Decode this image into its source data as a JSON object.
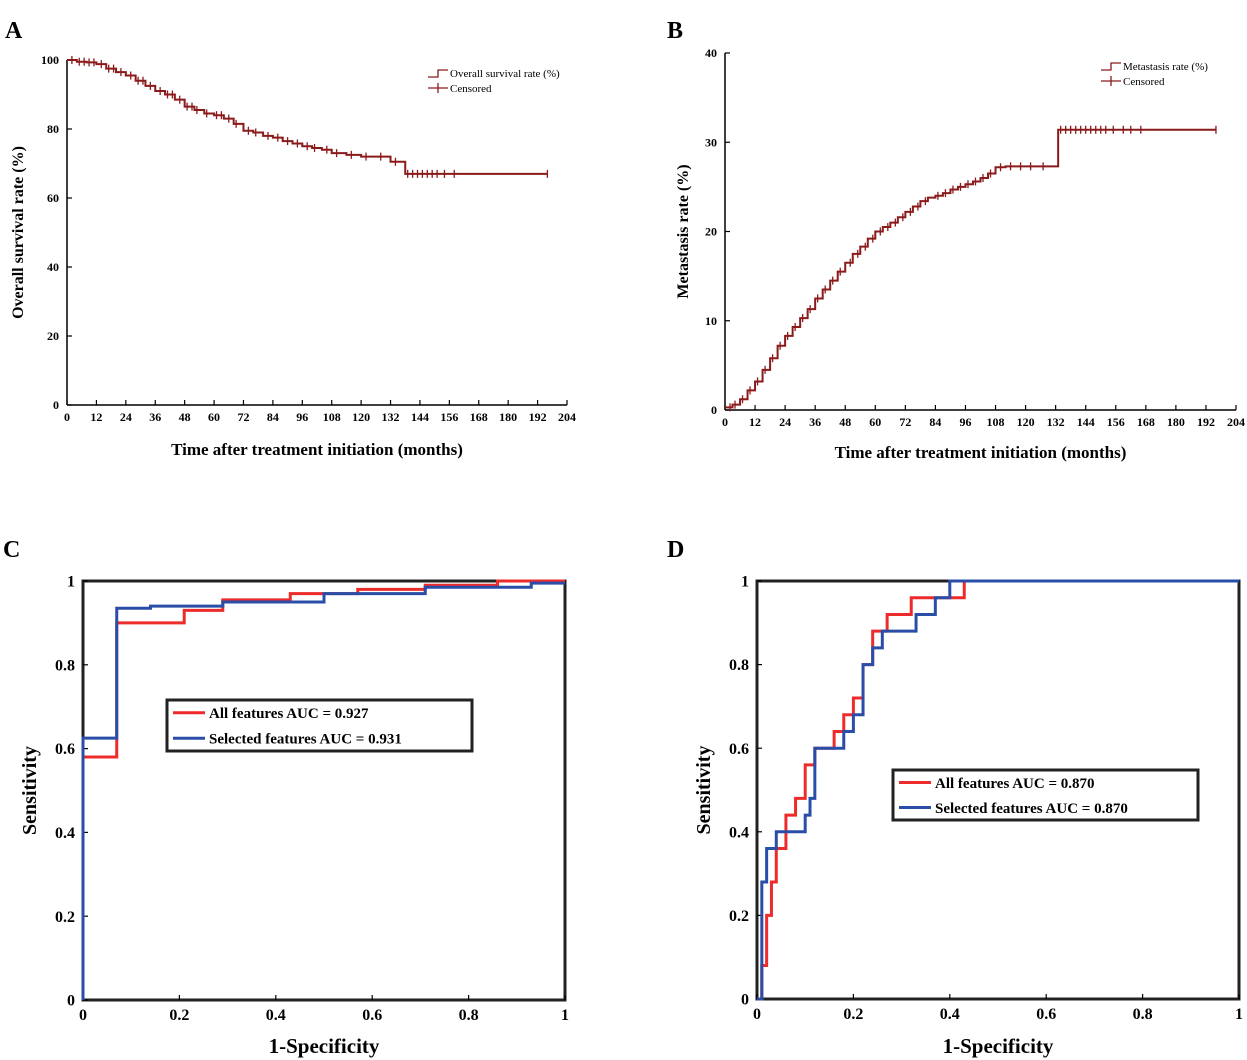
{
  "chart_data": [
    {
      "panel": "A",
      "type": "line",
      "step": true,
      "xlabel": "Time after treatment initiation (months)",
      "ylabel": "Overall survival rate (%)",
      "xlim": [
        0,
        204
      ],
      "ylim": [
        0,
        100
      ],
      "xticks": [
        0,
        12,
        24,
        36,
        48,
        60,
        72,
        84,
        96,
        108,
        120,
        132,
        144,
        156,
        168,
        180,
        192,
        204
      ],
      "yticks": [
        0,
        20,
        40,
        60,
        80,
        100
      ],
      "color": "#8b1a1a",
      "legend": [
        "Overall survival rate (%)",
        "Censored"
      ],
      "legend_position": "top-right",
      "series": [
        {
          "name": "Overall survival rate (%)",
          "x": [
            0,
            4,
            8,
            12,
            16,
            20,
            24,
            28,
            32,
            36,
            40,
            44,
            48,
            52,
            56,
            60,
            64,
            68,
            72,
            76,
            80,
            84,
            88,
            92,
            96,
            100,
            104,
            108,
            114,
            120,
            126,
            132,
            137,
            138,
            144,
            150,
            160,
            170,
            180,
            192,
            196
          ],
          "y": [
            100,
            99.5,
            99.3,
            98.8,
            97.5,
            96.5,
            95.5,
            94,
            92.5,
            91,
            90,
            88.5,
            86.5,
            85.5,
            84.5,
            84,
            83,
            81.5,
            79.5,
            79,
            78,
            77.5,
            76.5,
            75.8,
            75,
            74.5,
            74,
            73,
            72.5,
            72,
            72,
            70.5,
            70.5,
            67,
            67,
            67,
            67,
            67,
            67,
            67,
            67
          ]
        }
      ],
      "censored_x": [
        2,
        5,
        7,
        9,
        11,
        14,
        17,
        19,
        22,
        26,
        29,
        31,
        34,
        38,
        41,
        43,
        46,
        49,
        51,
        53,
        57,
        61,
        63,
        66,
        69,
        74,
        77,
        82,
        86,
        90,
        94,
        98,
        101,
        106,
        110,
        116,
        122,
        128,
        134,
        139,
        141,
        143,
        145,
        147,
        149,
        151,
        154,
        158,
        196
      ]
    },
    {
      "panel": "B",
      "type": "line",
      "step": true,
      "xlabel": "Time after treatment initiation (months)",
      "ylabel": "Metastasis rate (%)",
      "xlim": [
        0,
        204
      ],
      "ylim": [
        0,
        40
      ],
      "xticks": [
        0,
        12,
        24,
        36,
        48,
        60,
        72,
        84,
        96,
        108,
        120,
        132,
        144,
        156,
        168,
        180,
        192,
        204
      ],
      "yticks": [
        0,
        10,
        20,
        30,
        40
      ],
      "color": "#8b1a1a",
      "legend": [
        "Metastasis rate (%)",
        "Censored"
      ],
      "legend_position": "top-right",
      "series": [
        {
          "name": "Metastasis rate (%)",
          "x": [
            0,
            3,
            6,
            9,
            12,
            15,
            18,
            21,
            24,
            27,
            30,
            33,
            36,
            39,
            42,
            45,
            48,
            51,
            54,
            57,
            60,
            63,
            66,
            69,
            72,
            75,
            78,
            81,
            84,
            87,
            90,
            93,
            96,
            99,
            102,
            105,
            108,
            112,
            116,
            120,
            124,
            128,
            132,
            133,
            140,
            150,
            160,
            180,
            196
          ],
          "y": [
            0.3,
            0.6,
            1.2,
            2.2,
            3.2,
            4.5,
            5.8,
            7.2,
            8.3,
            9.3,
            10.3,
            11.3,
            12.5,
            13.5,
            14.5,
            15.5,
            16.5,
            17.5,
            18.3,
            19.2,
            20,
            20.5,
            21,
            21.6,
            22.2,
            22.8,
            23.4,
            23.8,
            24,
            24.3,
            24.7,
            25,
            25.3,
            25.6,
            26,
            26.5,
            27.2,
            27.3,
            27.3,
            27.3,
            27.3,
            27.3,
            27.3,
            31.4,
            31.4,
            31.4,
            31.4,
            31.4,
            31.4
          ]
        }
      ],
      "censored_x": [
        2,
        4,
        7,
        10,
        13,
        16,
        19,
        22,
        25,
        28,
        31,
        34,
        37,
        40,
        43,
        46,
        50,
        53,
        56,
        59,
        62,
        65,
        68,
        71,
        74,
        77,
        80,
        85,
        88,
        91,
        94,
        97,
        100,
        103,
        106,
        110,
        114,
        118,
        122,
        127,
        134,
        136,
        138,
        140,
        142,
        144,
        146,
        148,
        150,
        152,
        155,
        159,
        162,
        166,
        196
      ]
    },
    {
      "panel": "C",
      "type": "line",
      "step": true,
      "xlabel": "1-Specificity",
      "ylabel": "Sensitivity",
      "xlim": [
        0,
        1
      ],
      "ylim": [
        0,
        1
      ],
      "xticks": [
        0,
        0.2,
        0.4,
        0.6,
        0.8,
        1
      ],
      "yticks": [
        0,
        0.2,
        0.4,
        0.6,
        0.8,
        1
      ],
      "legend_position": "center",
      "series": [
        {
          "name": "All features AUC = 0.927",
          "color": "#ee2b2b",
          "x": [
            0,
            0,
            0,
            0.07,
            0.07,
            0.21,
            0.21,
            0.29,
            0.29,
            0.43,
            0.43,
            0.57,
            0.57,
            0.71,
            0.71,
            0.86,
            0.86,
            1
          ],
          "y": [
            0,
            0.08,
            0.58,
            0.58,
            0.9,
            0.9,
            0.93,
            0.93,
            0.955,
            0.955,
            0.97,
            0.97,
            0.98,
            0.98,
            0.99,
            0.99,
            1,
            1
          ]
        },
        {
          "name": "Selected features AUC = 0.931",
          "color": "#2a4ea8",
          "x": [
            0,
            0,
            0,
            0.07,
            0.07,
            0.14,
            0.14,
            0.29,
            0.29,
            0.5,
            0.5,
            0.71,
            0.71,
            0.93,
            0.93,
            1
          ],
          "y": [
            0,
            0.2,
            0.625,
            0.625,
            0.935,
            0.935,
            0.94,
            0.94,
            0.95,
            0.95,
            0.97,
            0.97,
            0.985,
            0.985,
            0.995,
            0.995
          ]
        }
      ]
    },
    {
      "panel": "D",
      "type": "line",
      "step": true,
      "xlabel": "1-Specificity",
      "ylabel": "Sensitivity",
      "xlim": [
        0,
        1
      ],
      "ylim": [
        0,
        1
      ],
      "xticks": [
        0,
        0.2,
        0.4,
        0.6,
        0.8,
        1
      ],
      "yticks": [
        0,
        0.2,
        0.4,
        0.6,
        0.8,
        1
      ],
      "legend_position": "center-right",
      "series": [
        {
          "name": "All features AUC = 0.870",
          "color": "#ee2b2b",
          "x": [
            0,
            0.01,
            0.01,
            0.02,
            0.02,
            0.03,
            0.03,
            0.04,
            0.04,
            0.06,
            0.06,
            0.08,
            0.08,
            0.1,
            0.1,
            0.12,
            0.12,
            0.16,
            0.16,
            0.18,
            0.18,
            0.2,
            0.2,
            0.22,
            0.22,
            0.24,
            0.24,
            0.27,
            0.27,
            0.32,
            0.32,
            0.36,
            0.36,
            0.43,
            0.43,
            0.6,
            1
          ],
          "y": [
            0,
            0,
            0.08,
            0.08,
            0.2,
            0.2,
            0.28,
            0.28,
            0.36,
            0.36,
            0.44,
            0.44,
            0.48,
            0.48,
            0.56,
            0.56,
            0.6,
            0.6,
            0.64,
            0.64,
            0.68,
            0.68,
            0.72,
            0.72,
            0.8,
            0.8,
            0.88,
            0.88,
            0.92,
            0.92,
            0.96,
            0.96,
            0.96,
            0.96,
            1,
            1,
            1
          ]
        },
        {
          "name": "Selected features AUC = 0.870",
          "color": "#2a4ea8",
          "x": [
            0,
            0.01,
            0.01,
            0.02,
            0.02,
            0.04,
            0.04,
            0.1,
            0.1,
            0.11,
            0.11,
            0.12,
            0.12,
            0.18,
            0.18,
            0.2,
            0.2,
            0.22,
            0.22,
            0.24,
            0.24,
            0.26,
            0.26,
            0.33,
            0.33,
            0.37,
            0.37,
            0.4,
            0.4,
            1
          ],
          "y": [
            0,
            0,
            0.28,
            0.28,
            0.36,
            0.36,
            0.4,
            0.4,
            0.44,
            0.44,
            0.48,
            0.48,
            0.6,
            0.6,
            0.64,
            0.64,
            0.68,
            0.68,
            0.8,
            0.8,
            0.84,
            0.84,
            0.88,
            0.88,
            0.92,
            0.92,
            0.96,
            0.96,
            1,
            1
          ]
        }
      ]
    }
  ]
}
